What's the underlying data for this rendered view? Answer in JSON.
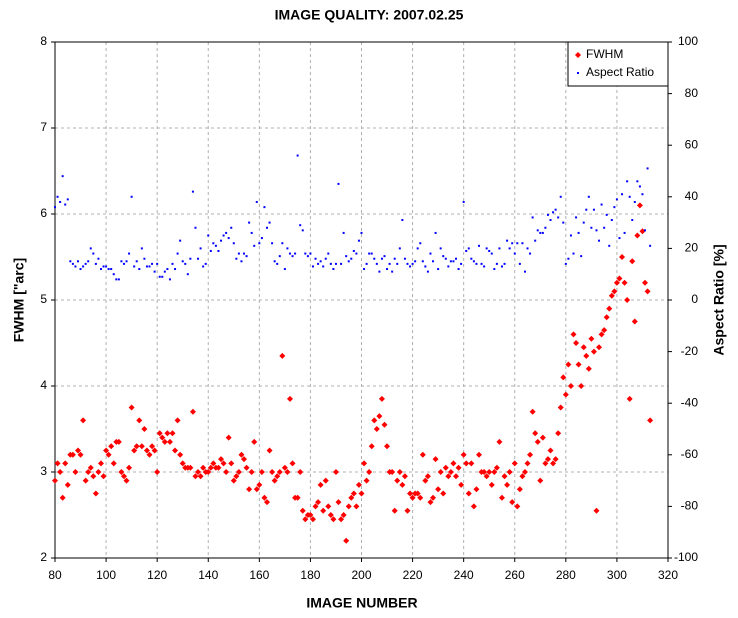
{
  "chart_data": {
    "type": "scatter",
    "title": "IMAGE QUALITY: 2007.02.25",
    "x_label": "IMAGE NUMBER",
    "y_label": "FWHM [\"arc]",
    "y2_label": "Aspect Ratio [%]",
    "xlim": [
      80,
      320
    ],
    "xticks": [
      80,
      100,
      120,
      140,
      160,
      180,
      200,
      220,
      240,
      260,
      280,
      300,
      320
    ],
    "ylim": [
      2,
      8
    ],
    "yticks": [
      2,
      3,
      4,
      5,
      6,
      7,
      8
    ],
    "y2lim": [
      -100,
      100
    ],
    "y2ticks": [
      -100,
      -80,
      -60,
      -40,
      -20,
      0,
      20,
      40,
      60,
      80,
      100
    ],
    "grid": true,
    "legend": "top-right",
    "x": [
      80,
      81,
      82,
      83,
      84,
      85,
      86,
      87,
      88,
      89,
      90,
      91,
      92,
      93,
      94,
      95,
      96,
      97,
      98,
      99,
      100,
      101,
      102,
      103,
      104,
      105,
      106,
      107,
      108,
      109,
      110,
      111,
      112,
      113,
      114,
      115,
      116,
      117,
      118,
      119,
      120,
      121,
      122,
      123,
      124,
      125,
      126,
      127,
      128,
      129,
      130,
      131,
      132,
      133,
      134,
      135,
      136,
      137,
      138,
      139,
      140,
      141,
      142,
      143,
      144,
      145,
      146,
      147,
      148,
      149,
      150,
      151,
      152,
      153,
      154,
      155,
      156,
      157,
      158,
      159,
      160,
      161,
      162,
      163,
      164,
      165,
      166,
      167,
      168,
      169,
      170,
      171,
      172,
      173,
      174,
      175,
      176,
      177,
      178,
      179,
      180,
      181,
      182,
      183,
      184,
      185,
      186,
      187,
      188,
      189,
      190,
      191,
      192,
      193,
      194,
      195,
      196,
      197,
      198,
      199,
      200,
      201,
      202,
      203,
      204,
      205,
      206,
      207,
      208,
      209,
      210,
      211,
      212,
      213,
      214,
      215,
      216,
      217,
      218,
      219,
      220,
      221,
      222,
      223,
      224,
      225,
      226,
      227,
      228,
      229,
      230,
      231,
      232,
      233,
      234,
      235,
      236,
      237,
      238,
      239,
      240,
      241,
      242,
      243,
      244,
      245,
      246,
      247,
      248,
      249,
      250,
      251,
      252,
      253,
      254,
      255,
      256,
      257,
      258,
      259,
      260,
      261,
      262,
      263,
      264,
      265,
      266,
      267,
      268,
      269,
      270,
      271,
      272,
      273,
      274,
      275,
      276,
      277,
      278,
      279,
      280,
      281,
      282,
      283,
      284,
      285,
      286,
      287,
      288,
      289,
      290,
      291,
      292,
      293,
      294,
      295,
      296,
      297,
      298,
      299,
      300,
      301,
      302,
      303,
      304,
      305,
      306,
      307,
      308,
      309,
      310,
      311,
      312,
      313
    ],
    "series": [
      {
        "name": "FWHM",
        "color": "#ff0000",
        "marker": "diamond",
        "values": [
          2.9,
          3.1,
          3.0,
          2.7,
          3.1,
          2.85,
          3.2,
          3.2,
          3.0,
          3.25,
          3.2,
          3.6,
          2.9,
          3.0,
          3.05,
          2.95,
          2.75,
          3.0,
          3.1,
          2.95,
          3.25,
          3.2,
          3.3,
          3.1,
          3.35,
          3.35,
          3.0,
          2.95,
          2.9,
          3.05,
          3.75,
          3.25,
          3.3,
          3.6,
          3.3,
          3.5,
          3.25,
          3.2,
          3.3,
          3.25,
          3.0,
          3.45,
          3.4,
          3.35,
          3.45,
          3.35,
          3.45,
          3.25,
          3.6,
          3.2,
          3.1,
          3.05,
          3.05,
          3.05,
          3.7,
          2.95,
          3.0,
          2.95,
          3.05,
          3.0,
          3.0,
          3.05,
          3.1,
          3.05,
          3.05,
          3.15,
          3.1,
          3.0,
          3.4,
          3.1,
          2.9,
          2.95,
          3.0,
          3.2,
          3.15,
          3.05,
          2.8,
          3.0,
          3.35,
          2.8,
          2.85,
          3.0,
          2.7,
          2.65,
          3.25,
          3.0,
          2.9,
          2.95,
          3.0,
          4.35,
          3.05,
          3.0,
          3.85,
          3.1,
          2.7,
          2.7,
          3.0,
          2.55,
          2.45,
          2.5,
          2.5,
          2.45,
          2.6,
          2.65,
          2.85,
          2.55,
          2.9,
          2.6,
          2.5,
          2.45,
          3.0,
          2.65,
          2.45,
          2.5,
          2.2,
          2.6,
          2.7,
          2.75,
          2.6,
          2.85,
          2.75,
          3.1,
          2.9,
          3.0,
          3.3,
          3.6,
          3.5,
          3.65,
          3.85,
          3.55,
          3.3,
          3.0,
          3.0,
          2.55,
          2.9,
          3.0,
          2.85,
          2.95,
          2.55,
          2.75,
          2.7,
          2.75,
          2.75,
          2.7,
          3.2,
          2.9,
          2.95,
          2.65,
          2.7,
          3.15,
          2.8,
          3.0,
          2.75,
          3.05,
          2.95,
          3.0,
          3.1,
          2.95,
          3.05,
          2.85,
          3.2,
          3.1,
          2.75,
          3.1,
          2.6,
          2.8,
          3.2,
          3.0,
          3.0,
          2.95,
          3.0,
          2.85,
          3.0,
          3.05,
          3.35,
          2.7,
          2.95,
          2.85,
          3.0,
          2.65,
          3.1,
          2.6,
          2.8,
          2.95,
          3.0,
          3.1,
          3.2,
          3.7,
          3.45,
          3.35,
          2.9,
          3.4,
          3.1,
          3.15,
          3.25,
          3.1,
          3.15,
          3.45,
          3.75,
          4.1,
          3.9,
          4.25,
          4.0,
          4.6,
          4.5,
          4.25,
          4.0,
          4.45,
          4.35,
          4.2,
          4.55,
          4.4,
          2.55,
          4.45,
          4.6,
          4.65,
          4.8,
          4.9,
          5.05,
          5.1,
          5.2,
          5.25,
          5.5,
          5.2,
          5.0,
          3.85,
          5.45,
          4.75,
          5.75,
          6.1,
          5.8,
          5.2,
          5.1,
          3.6
        ]
      },
      {
        "name": "Aspect Ratio",
        "color": "#0000ff",
        "marker": "square",
        "axis": "y2",
        "values": [
          36,
          40,
          38,
          48,
          37,
          39,
          15,
          14,
          13,
          15,
          12,
          13,
          14,
          15,
          20,
          18,
          14,
          16,
          12,
          13,
          13,
          12,
          12,
          10,
          8,
          8,
          15,
          14,
          15,
          18,
          40,
          13,
          15,
          12,
          20,
          16,
          13,
          13,
          14,
          11,
          14,
          9,
          9,
          11,
          12,
          8,
          14,
          12,
          18,
          23,
          15,
          14,
          10,
          16,
          42,
          28,
          16,
          20,
          13,
          14,
          25,
          19,
          22,
          21,
          19,
          23,
          25,
          26,
          24,
          28,
          22,
          16,
          18,
          15,
          18,
          17,
          30,
          26,
          21,
          38,
          22,
          24,
          36,
          28,
          30,
          22,
          15,
          14,
          17,
          22,
          12,
          20,
          18,
          17,
          18,
          56,
          29,
          27,
          18,
          17,
          18,
          13,
          16,
          14,
          15,
          13,
          16,
          18,
          14,
          12,
          14,
          45,
          14,
          26,
          17,
          15,
          16,
          19,
          18,
          23,
          26,
          12,
          14,
          18,
          18,
          16,
          14,
          11,
          16,
          17,
          12,
          14,
          11,
          16,
          14,
          20,
          31,
          16,
          14,
          13,
          14,
          15,
          20,
          22,
          15,
          13,
          11,
          18,
          15,
          26,
          12,
          20,
          17,
          16,
          13,
          15,
          15,
          16,
          12,
          14,
          38,
          19,
          20,
          16,
          15,
          14,
          21,
          14,
          13,
          20,
          19,
          18,
          12,
          14,
          20,
          13,
          14,
          23,
          20,
          22,
          18,
          22,
          14,
          22,
          11,
          20,
          18,
          32,
          23,
          27,
          26,
          26,
          28,
          33,
          31,
          34,
          35,
          32,
          40,
          30,
          14,
          16,
          25,
          18,
          32,
          26,
          17,
          30,
          35,
          40,
          28,
          35,
          27,
          23,
          37,
          28,
          33,
          21,
          31,
          36,
          39,
          24,
          41,
          26,
          46,
          40,
          31,
          38,
          46,
          44,
          41,
          27,
          51,
          21
        ]
      }
    ]
  }
}
